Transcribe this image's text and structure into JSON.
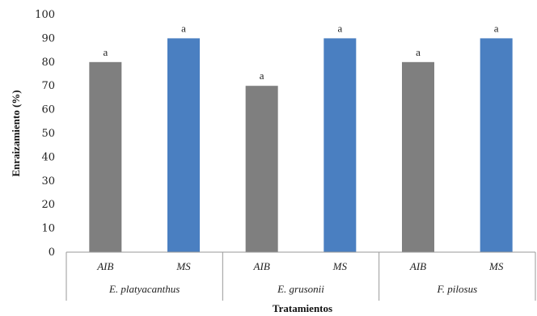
{
  "chart_data": {
    "type": "bar",
    "title": "",
    "xlabel": "Tratamientos",
    "ylabel": "Enraizamiento (%)",
    "ylim": [
      0,
      100
    ],
    "yticks": [
      0,
      10,
      20,
      30,
      40,
      50,
      60,
      70,
      80,
      90,
      100
    ],
    "grid": false,
    "legend": "none",
    "groups": [
      {
        "label": "E. platyacanthus",
        "bars": [
          {
            "category": "AIB",
            "value": 80,
            "label": "a",
            "color": "#7f7f7f"
          },
          {
            "category": "MS",
            "value": 90,
            "label": "a",
            "color": "#4a7fc1"
          }
        ]
      },
      {
        "label": "E. grusonii",
        "bars": [
          {
            "category": "AIB",
            "value": 70,
            "label": "a",
            "color": "#7f7f7f"
          },
          {
            "category": "MS",
            "value": 90,
            "label": "a",
            "color": "#4a7fc1"
          }
        ]
      },
      {
        "label": "F. pilosus",
        "bars": [
          {
            "category": "AIB",
            "value": 80,
            "label": "a",
            "color": "#7f7f7f"
          },
          {
            "category": "MS",
            "value": 90,
            "label": "a",
            "color": "#4a7fc1"
          }
        ]
      }
    ]
  }
}
